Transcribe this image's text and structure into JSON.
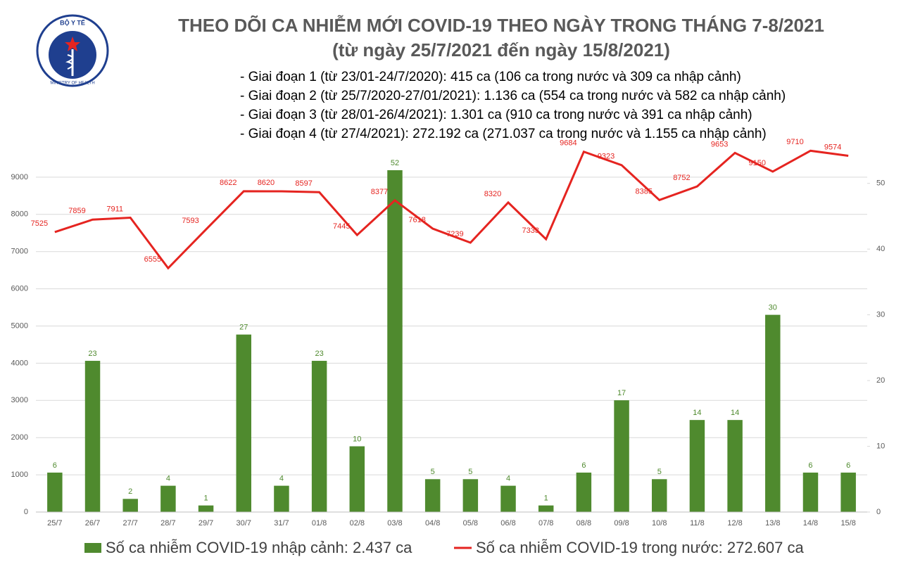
{
  "logo": {
    "top": "BỘ Y TẾ",
    "bottom": "MINISTRY OF HEALTH"
  },
  "chart_data": {
    "type": "bar-line",
    "title": "THEO DÕI CA NHIỄM MỚI COVID-19 THEO NGÀY TRONG THÁNG 7-8/2021",
    "subtitle": "(từ ngày 25/7/2021 đến ngày 15/8/2021)",
    "notes": [
      "- Giai đoạn 1 (từ 23/01-24/7/2020): 415 ca (106 ca trong nước và 309 ca nhập cảnh)",
      "- Giai đoạn 2 (từ 25/7/2020-27/01/2021): 1.136 ca (554 ca trong nước và 582 ca nhập cảnh)",
      "- Giai đoạn 3 (từ 28/01-26/4/2021): 1.301 ca (910 ca trong nước và 391 ca nhập cảnh)",
      "- Giai đoạn 4 (từ 27/4/2021): 272.192 ca (271.037 ca trong nước và 1.155 ca nhập cảnh)"
    ],
    "categories": [
      "25/7",
      "26/7",
      "27/7",
      "28/7",
      "29/7",
      "30/7",
      "31/7",
      "01/8",
      "02/8",
      "03/8",
      "04/8",
      "05/8",
      "06/8",
      "07/8",
      "08/8",
      "09/8",
      "10/8",
      "11/8",
      "12/8",
      "13/8",
      "14/8",
      "15/8"
    ],
    "series": [
      {
        "name": "Số ca nhiễm COVID-19 nhập cảnh: 2.437 ca",
        "type": "bar",
        "axis": "y2",
        "color": "#4f8a2e",
        "values": [
          6,
          23,
          2,
          4,
          1,
          27,
          4,
          23,
          10,
          52,
          5,
          5,
          4,
          1,
          6,
          17,
          5,
          14,
          14,
          30,
          6,
          6
        ]
      },
      {
        "name": "Số ca nhiễm COVID-19 trong nước: 272.607 ca",
        "type": "line",
        "axis": "y",
        "color": "#e52420",
        "values": [
          7525,
          7859,
          7911,
          6555,
          7593,
          8622,
          8620,
          8597,
          7445,
          8377,
          7618,
          7239,
          8320,
          7333,
          9684,
          9323,
          8385,
          8752,
          9653,
          9150,
          9710,
          9574
        ]
      }
    ],
    "ylim": [
      0,
      10000
    ],
    "yticks": [
      0,
      1000,
      2000,
      3000,
      4000,
      5000,
      6000,
      7000,
      8000,
      9000
    ],
    "y2lim": [
      0,
      56.6
    ],
    "y2ticks": [
      0,
      10,
      20,
      30,
      40,
      50
    ],
    "grid": true
  }
}
